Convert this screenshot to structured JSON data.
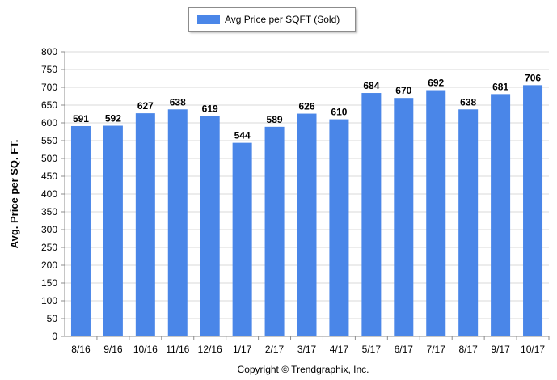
{
  "chart_data": {
    "type": "bar",
    "title": "",
    "xlabel": "",
    "ylabel": "Avg. Price per SQ. FT.",
    "categories": [
      "8/16",
      "9/16",
      "10/16",
      "11/16",
      "12/16",
      "1/17",
      "2/17",
      "3/17",
      "4/17",
      "5/17",
      "6/17",
      "7/17",
      "8/17",
      "9/17",
      "10/17"
    ],
    "series": [
      {
        "name": "Avg Price per SQFT (Sold)",
        "values": [
          591,
          592,
          627,
          638,
          619,
          544,
          589,
          626,
          610,
          684,
          670,
          692,
          638,
          681,
          706
        ]
      }
    ],
    "ylim": [
      0,
      800
    ],
    "yticks": [
      0,
      50,
      100,
      150,
      200,
      250,
      300,
      350,
      400,
      450,
      500,
      550,
      600,
      650,
      700,
      750,
      800
    ],
    "grid": true,
    "legend": "top-center",
    "bar_color": "#4a86e8",
    "data_labels": true
  },
  "footer": {
    "copyright": "Copyright © Trendgraphix, Inc."
  }
}
